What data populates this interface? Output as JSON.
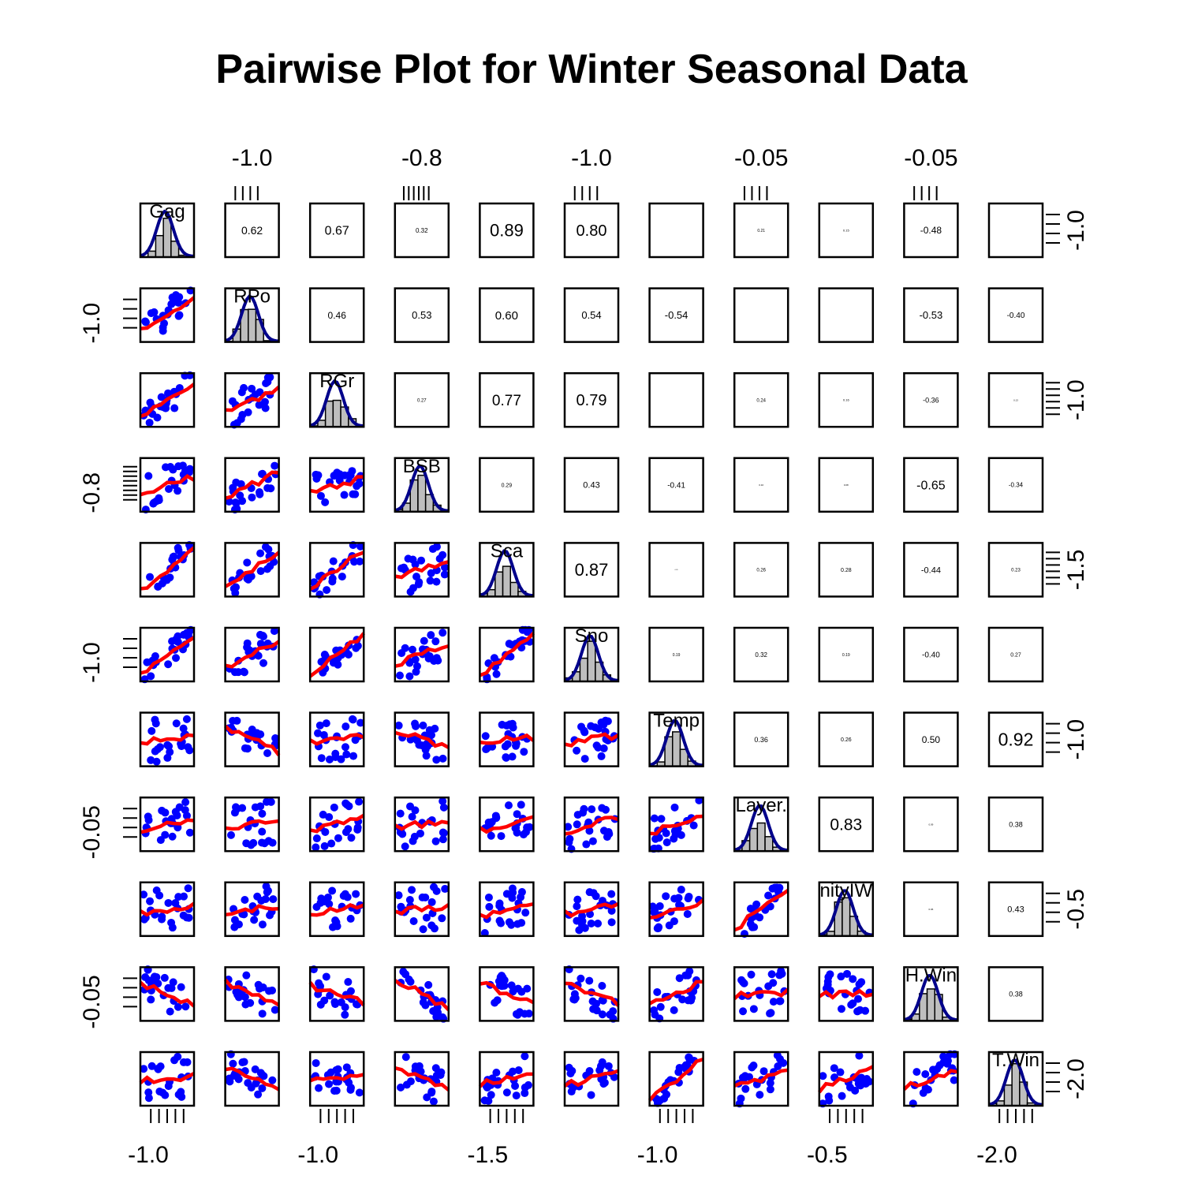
{
  "chart_data": {
    "type": "pairs",
    "title": "Pairwise Plot for Winter Seasonal Data",
    "variables": [
      "Gag",
      "RPo",
      "RGr",
      "BSB",
      "Sca",
      "Sno",
      "Temp",
      "Layer.",
      "nityIW",
      "H.Win",
      "T.Win"
    ],
    "correlations": [
      {
        "row": 0,
        "col": 1,
        "value": "0.62",
        "size": 14
      },
      {
        "row": 0,
        "col": 2,
        "value": "0.67",
        "size": 16
      },
      {
        "row": 0,
        "col": 3,
        "value": "0.32",
        "size": 8
      },
      {
        "row": 0,
        "col": 4,
        "value": "0.89",
        "size": 22
      },
      {
        "row": 0,
        "col": 5,
        "value": "0.80",
        "size": 20
      },
      {
        "row": 0,
        "col": 6,
        "value": "",
        "size": 4
      },
      {
        "row": 0,
        "col": 7,
        "value": "0.21",
        "size": 5
      },
      {
        "row": 0,
        "col": 8,
        "value": "0.15",
        "size": 4
      },
      {
        "row": 0,
        "col": 9,
        "value": "-0.48",
        "size": 12
      },
      {
        "row": 0,
        "col": 10,
        "value": "",
        "size": 3
      },
      {
        "row": 1,
        "col": 2,
        "value": "0.46",
        "size": 12
      },
      {
        "row": 1,
        "col": 3,
        "value": "0.53",
        "size": 13
      },
      {
        "row": 1,
        "col": 4,
        "value": "0.60",
        "size": 15
      },
      {
        "row": 1,
        "col": 5,
        "value": "0.54",
        "size": 13
      },
      {
        "row": 1,
        "col": 6,
        "value": "-0.54",
        "size": 13
      },
      {
        "row": 1,
        "col": 7,
        "value": "",
        "size": 2
      },
      {
        "row": 1,
        "col": 8,
        "value": "",
        "size": 2
      },
      {
        "row": 1,
        "col": 9,
        "value": "-0.53",
        "size": 13
      },
      {
        "row": 1,
        "col": 10,
        "value": "-0.40",
        "size": 10
      },
      {
        "row": 2,
        "col": 3,
        "value": "0.27",
        "size": 6
      },
      {
        "row": 2,
        "col": 4,
        "value": "0.77",
        "size": 19
      },
      {
        "row": 2,
        "col": 5,
        "value": "0.79",
        "size": 20
      },
      {
        "row": 2,
        "col": 6,
        "value": "",
        "size": 2
      },
      {
        "row": 2,
        "col": 7,
        "value": "0.24",
        "size": 6
      },
      {
        "row": 2,
        "col": 8,
        "value": "0.16",
        "size": 4
      },
      {
        "row": 2,
        "col": 9,
        "value": "-0.36",
        "size": 9
      },
      {
        "row": 2,
        "col": 10,
        "value": "0.13",
        "size": 3
      },
      {
        "row": 3,
        "col": 4,
        "value": "0.29",
        "size": 7
      },
      {
        "row": 3,
        "col": 5,
        "value": "0.43",
        "size": 11
      },
      {
        "row": 3,
        "col": 6,
        "value": "-0.41",
        "size": 10
      },
      {
        "row": 3,
        "col": 7,
        "value": "0.10",
        "size": 3
      },
      {
        "row": 3,
        "col": 8,
        "value": "0.08",
        "size": 3
      },
      {
        "row": 3,
        "col": 9,
        "value": "-0.65",
        "size": 16
      },
      {
        "row": 3,
        "col": 10,
        "value": "-0.34",
        "size": 8
      },
      {
        "row": 4,
        "col": 5,
        "value": "0.87",
        "size": 22
      },
      {
        "row": 4,
        "col": 6,
        "value": "0.05",
        "size": 2
      },
      {
        "row": 4,
        "col": 7,
        "value": "0.26",
        "size": 6
      },
      {
        "row": 4,
        "col": 8,
        "value": "0.28",
        "size": 7
      },
      {
        "row": 4,
        "col": 9,
        "value": "-0.44",
        "size": 11
      },
      {
        "row": 4,
        "col": 10,
        "value": "0.23",
        "size": 6
      },
      {
        "row": 5,
        "col": 6,
        "value": "0.19",
        "size": 5
      },
      {
        "row": 5,
        "col": 7,
        "value": "0.32",
        "size": 8
      },
      {
        "row": 5,
        "col": 8,
        "value": "0.19",
        "size": 5
      },
      {
        "row": 5,
        "col": 9,
        "value": "-0.40",
        "size": 10
      },
      {
        "row": 5,
        "col": 10,
        "value": "0.27",
        "size": 7
      },
      {
        "row": 6,
        "col": 7,
        "value": "0.36",
        "size": 9
      },
      {
        "row": 6,
        "col": 8,
        "value": "0.26",
        "size": 7
      },
      {
        "row": 6,
        "col": 9,
        "value": "0.50",
        "size": 12
      },
      {
        "row": 6,
        "col": 10,
        "value": "0.92",
        "size": 23
      },
      {
        "row": 7,
        "col": 8,
        "value": "0.83",
        "size": 21
      },
      {
        "row": 7,
        "col": 9,
        "value": "0.09",
        "size": 3
      },
      {
        "row": 7,
        "col": 10,
        "value": "0.38",
        "size": 9
      },
      {
        "row": 8,
        "col": 9,
        "value": "0.06",
        "size": 3
      },
      {
        "row": 8,
        "col": 10,
        "value": "0.43",
        "size": 11
      },
      {
        "row": 9,
        "col": 10,
        "value": "0.38",
        "size": 9
      }
    ],
    "top_tick_labels": [
      {
        "col": 1,
        "text": "-1.0"
      },
      {
        "col": 3,
        "text": "-0.8"
      },
      {
        "col": 5,
        "text": "-1.0"
      },
      {
        "col": 7,
        "text": "-0.05"
      },
      {
        "col": 9,
        "text": "-0.05"
      }
    ],
    "bottom_tick_labels": [
      {
        "col": 0,
        "text": "-1.0"
      },
      {
        "col": 2,
        "text": "-1.0"
      },
      {
        "col": 4,
        "text": "-1.5"
      },
      {
        "col": 6,
        "text": "-1.0"
      },
      {
        "col": 8,
        "text": "-0.5"
      },
      {
        "col": 10,
        "text": "-2.0"
      }
    ],
    "left_tick_labels": [
      {
        "row": 1,
        "text": "-1.0"
      },
      {
        "row": 3,
        "text": "-0.8"
      },
      {
        "row": 5,
        "text": "-1.0"
      },
      {
        "row": 7,
        "text": "-0.05"
      },
      {
        "row": 9,
        "text": "-0.05"
      }
    ],
    "right_tick_labels": [
      {
        "row": 0,
        "text": "-1.0"
      },
      {
        "row": 2,
        "text": "-1.0"
      },
      {
        "row": 4,
        "text": "-1.5"
      },
      {
        "row": 6,
        "text": "-1.0"
      },
      {
        "row": 8,
        "text": "-0.5"
      },
      {
        "row": 10,
        "text": "-2.0"
      }
    ],
    "colors": {
      "points": "#0000ff",
      "smooth_line": "#ff0000",
      "density_line": "#00008b",
      "histogram_fill": "#bebebe",
      "frame": "#000000"
    },
    "lower_panels": "scatter with red smoothing line",
    "diagonal_panels": "histogram with blue density curve",
    "upper_panels": "correlation coefficient, text size proportional to |r|"
  }
}
